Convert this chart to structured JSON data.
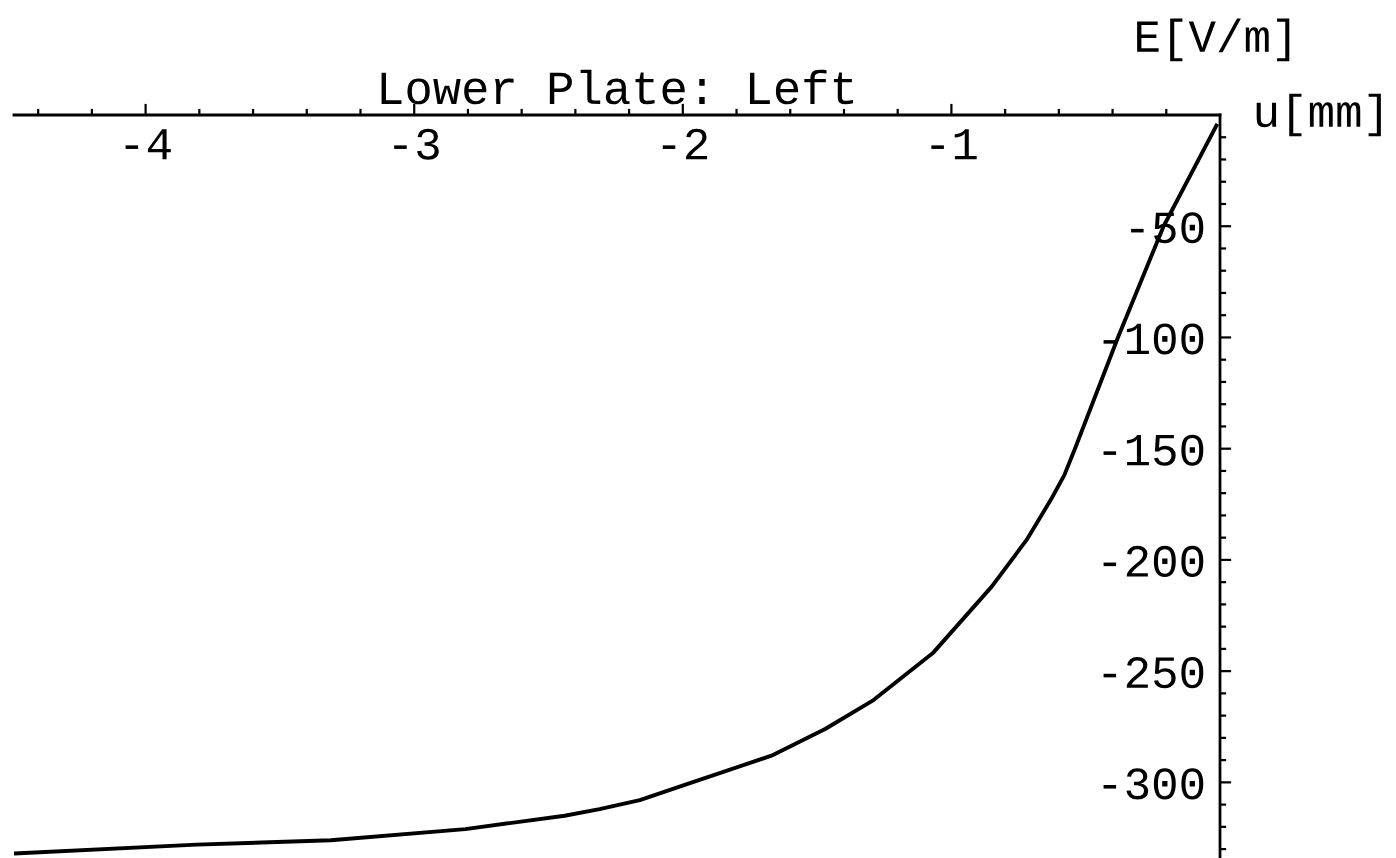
{
  "chart_data": {
    "type": "line",
    "title": "Lower Plate: Left",
    "xlabel": "u[mm]",
    "ylabel": "E[V/m]",
    "x": [
      -4.49,
      -3.81,
      -3.31,
      -2.81,
      -2.44,
      -2.31,
      -2.16,
      -1.99,
      -1.67,
      -1.47,
      -1.29,
      -1.07,
      -0.85,
      -0.72,
      -0.63,
      -0.58,
      -0.54,
      -0.38,
      -0.21,
      -0.01
    ],
    "series": [
      {
        "color": "#000000",
        "values": [
          -332,
          -328,
          -326,
          -321,
          -315,
          -312,
          -308,
          -301,
          -288,
          -276,
          -263,
          -242,
          -212,
          -191,
          -173,
          -162,
          -150,
          -100,
          -50,
          -4
        ]
      }
    ],
    "xlim": [
      -4.49,
      0
    ],
    "ylim": [
      -334,
      0
    ],
    "xticks": [
      {
        "value": -4.4,
        "label": null
      },
      {
        "value": -4.2,
        "label": null
      },
      -4,
      {
        "value": -3.8,
        "label": null
      },
      {
        "value": -3.6,
        "label": null
      },
      {
        "value": -3.4,
        "label": null
      },
      {
        "value": -3.2,
        "label": null
      },
      -3,
      {
        "value": -2.8,
        "label": null
      },
      {
        "value": -2.6,
        "label": null
      },
      {
        "value": -2.4,
        "label": null
      },
      {
        "value": -2.2,
        "label": null
      },
      -2,
      {
        "value": -1.8,
        "label": null
      },
      {
        "value": -1.6,
        "label": null
      },
      {
        "value": -1.4,
        "label": null
      },
      {
        "value": -1.2,
        "label": null
      },
      -1,
      {
        "value": -0.8,
        "label": null
      },
      {
        "value": -0.6,
        "label": null
      },
      {
        "value": -0.4,
        "label": null
      },
      {
        "value": -0.2,
        "label": null
      }
    ],
    "yticks": [
      {
        "value": -10,
        "label": null
      },
      {
        "value": -20,
        "label": null
      },
      {
        "value": -30,
        "label": null
      },
      {
        "value": -40,
        "label": null
      },
      -50,
      {
        "value": -60,
        "label": null
      },
      {
        "value": -70,
        "label": null
      },
      {
        "value": -80,
        "label": null
      },
      {
        "value": -90,
        "label": null
      },
      -100,
      {
        "value": -110,
        "label": null
      },
      {
        "value": -120,
        "label": null
      },
      {
        "value": -130,
        "label": null
      },
      {
        "value": -140,
        "label": null
      },
      -150,
      {
        "value": -160,
        "label": null
      },
      {
        "value": -170,
        "label": null
      },
      {
        "value": -180,
        "label": null
      },
      {
        "value": -190,
        "label": null
      },
      -200,
      {
        "value": -210,
        "label": null
      },
      {
        "value": -220,
        "label": null
      },
      {
        "value": -230,
        "label": null
      },
      {
        "value": -240,
        "label": null
      },
      -250,
      {
        "value": -260,
        "label": null
      },
      {
        "value": -270,
        "label": null
      },
      {
        "value": -280,
        "label": null
      },
      {
        "value": -290,
        "label": null
      },
      -300,
      {
        "value": -310,
        "label": null
      },
      {
        "value": -320,
        "label": null
      },
      {
        "value": -330,
        "label": null
      }
    ],
    "grid": false,
    "marker": "none",
    "line_style": "solid"
  }
}
